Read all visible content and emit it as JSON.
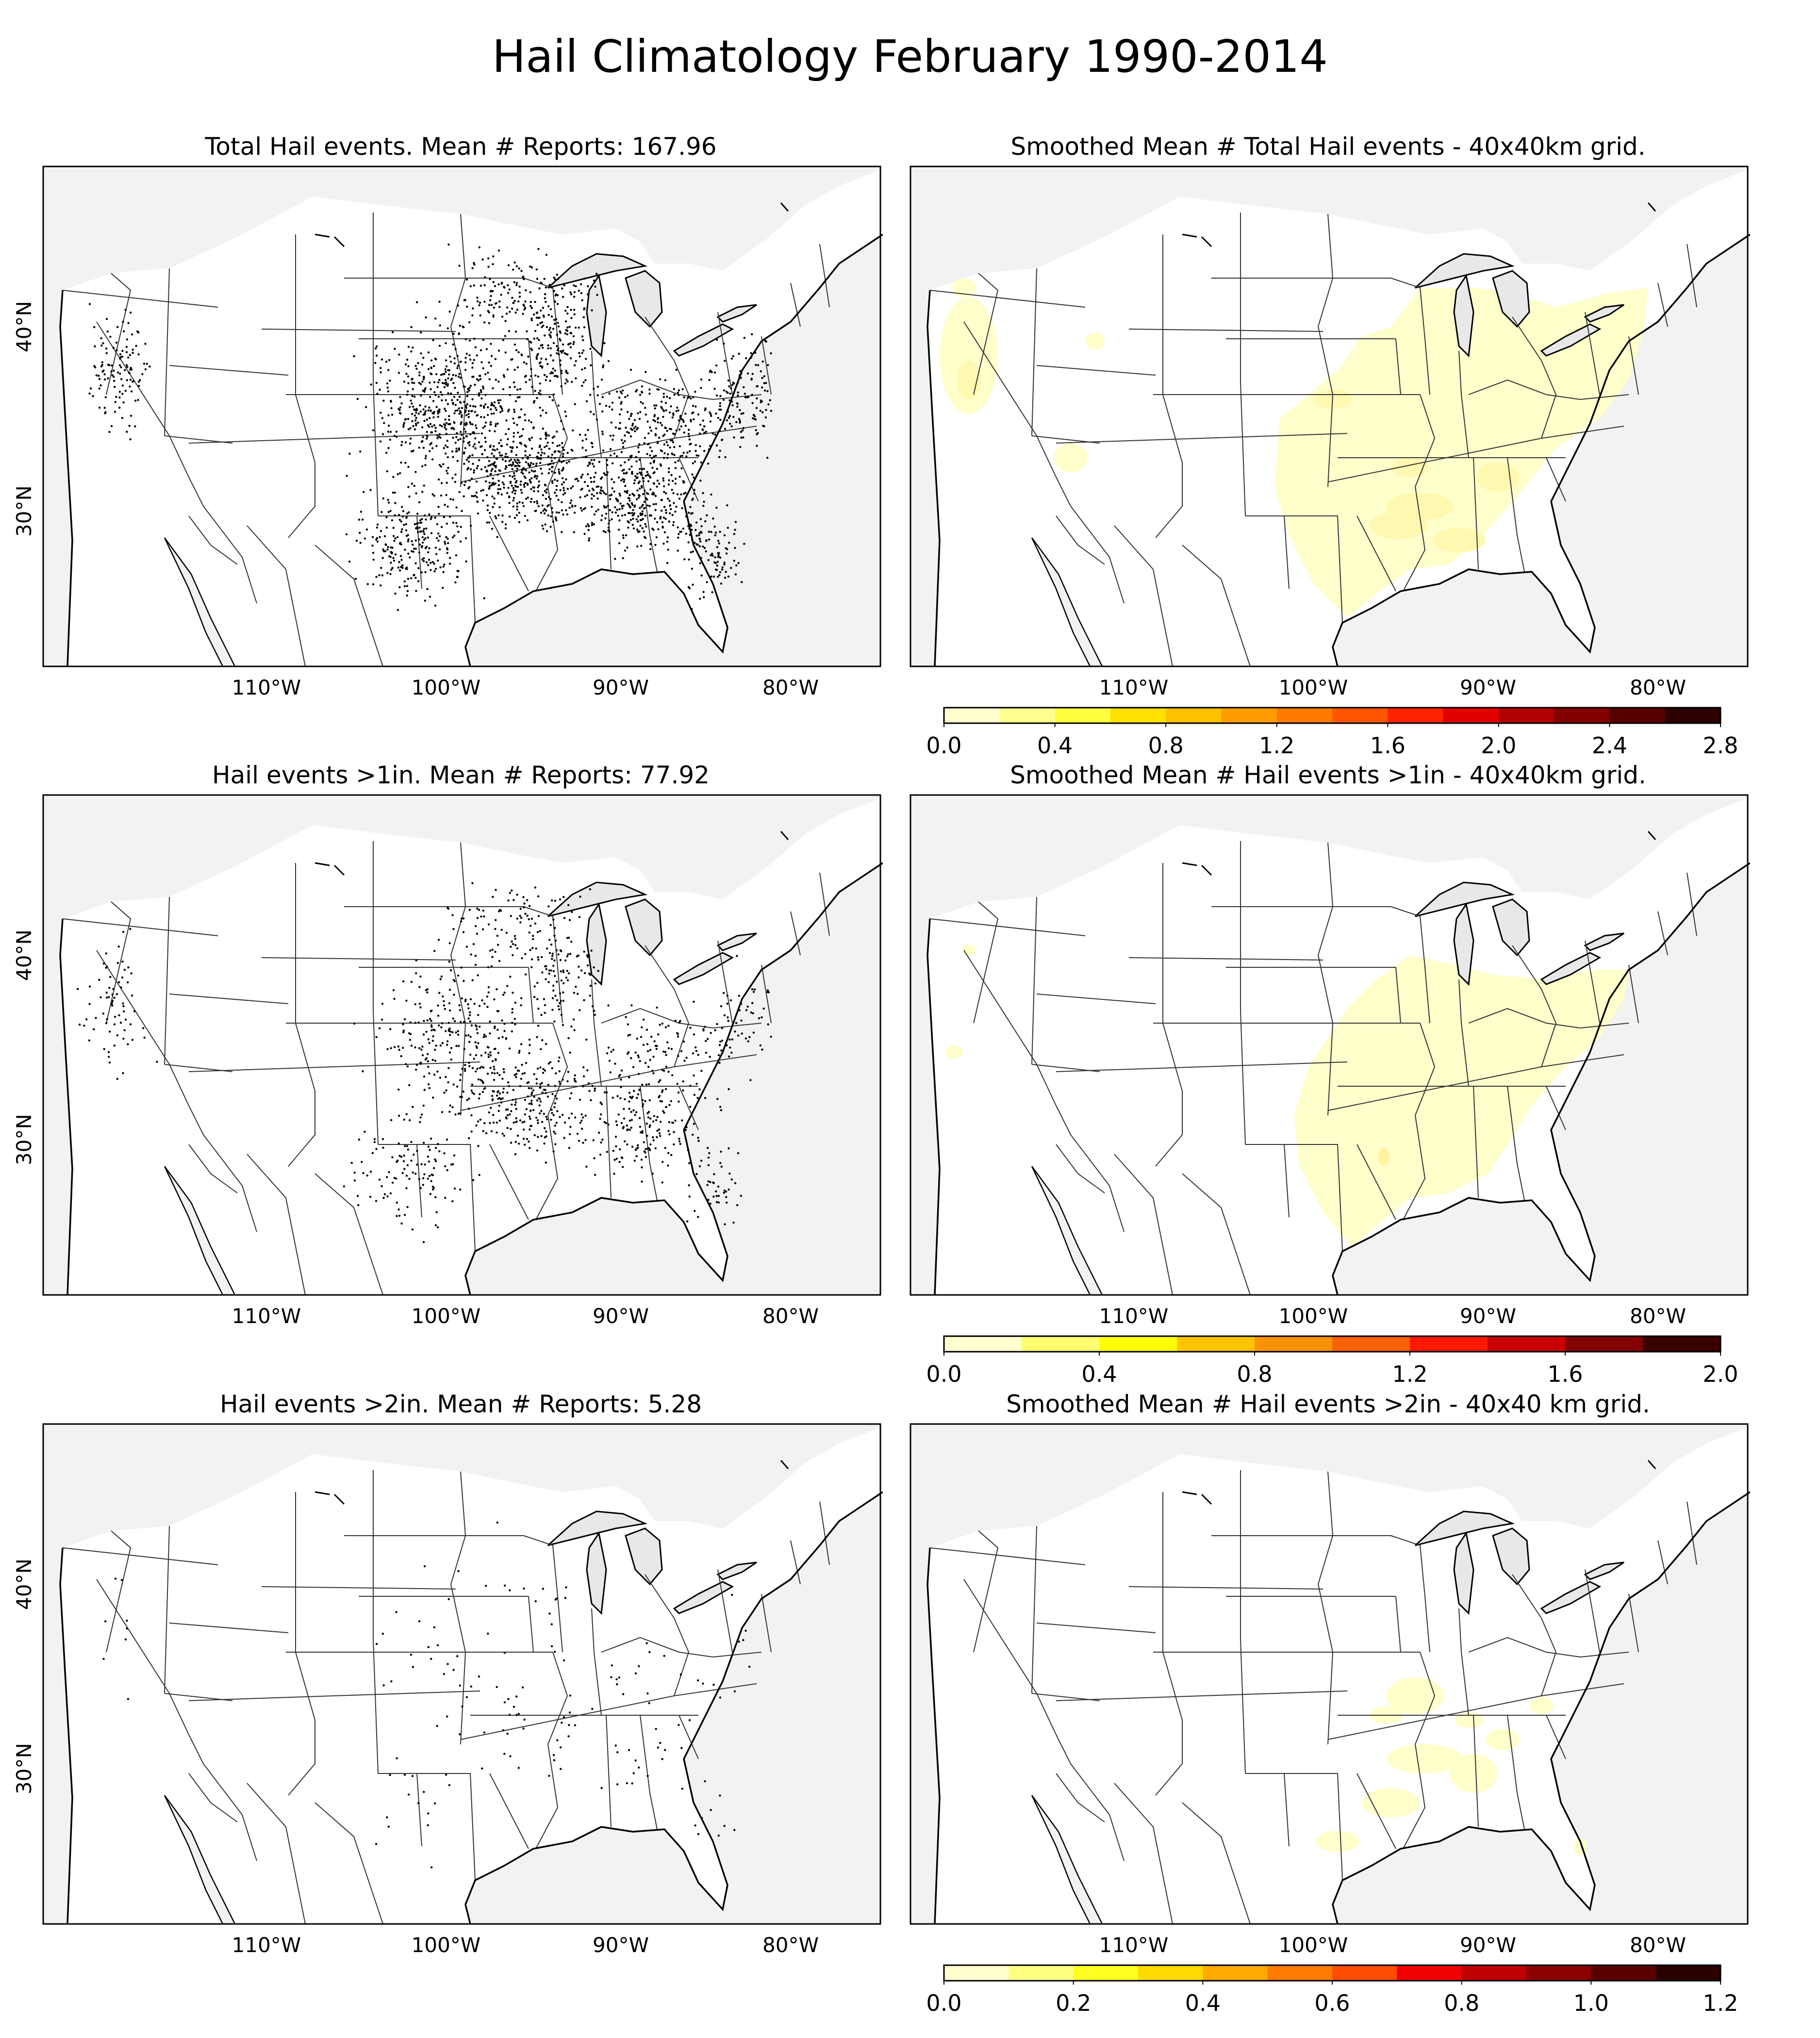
{
  "title": "Hail Climatology February 1990-2014",
  "axes": {
    "lon_ticks": [
      "110°W",
      "100°W",
      "90°W",
      "80°W"
    ],
    "lat_ticks": [
      "40°N",
      "30°N"
    ]
  },
  "colors": {
    "land": "#ffffff",
    "ocean": "#f2f2f2",
    "borders": "#000000",
    "points": "#000000"
  },
  "icons": [
    "state-borders",
    "coastline",
    "report-dot",
    "contour-fill"
  ],
  "panels": [
    {
      "id": "total-reports",
      "title": "Total Hail events. Mean # Reports: 167.96",
      "kind": "points",
      "density": 1.0
    },
    {
      "id": "total-smoothed",
      "title": "Smoothed Mean # Total Hail events - 40x40km grid.",
      "kind": "smoothed",
      "variant": 1
    },
    {
      "id": "gt1-reports",
      "title": "Hail events >1in. Mean # Reports: 77.92",
      "kind": "points",
      "density": 0.5
    },
    {
      "id": "gt1-smoothed",
      "title": "Smoothed Mean # Hail events >1in - 40x40km grid.",
      "kind": "smoothed",
      "variant": 2
    },
    {
      "id": "gt2-reports",
      "title": "Hail events >2in. Mean # Reports: 5.28",
      "kind": "points",
      "density": 0.06
    },
    {
      "id": "gt2-smoothed",
      "title": "Smoothed Mean # Hail events >2in - 40x40 km grid.",
      "kind": "smoothed",
      "variant": 3
    }
  ],
  "colorbars": [
    {
      "id": "cb-total",
      "min": 0.0,
      "max": 2.8,
      "labels": [
        "0.0",
        "0.4",
        "0.8",
        "1.2",
        "1.6",
        "2.0",
        "2.4",
        "2.8"
      ],
      "colors": [
        "#ffffd0",
        "#ffff90",
        "#ffff40",
        "#ffe000",
        "#ffc000",
        "#ff9d00",
        "#ff7a00",
        "#ff5500",
        "#ff2200",
        "#e00000",
        "#b00000",
        "#820000",
        "#560000",
        "#2c0000"
      ]
    },
    {
      "id": "cb-gt1",
      "min": 0.0,
      "max": 2.0,
      "labels": [
        "0.0",
        "0.4",
        "0.8",
        "1.2",
        "1.6",
        "2.0"
      ],
      "colors": [
        "#ffffd0",
        "#ffff70",
        "#ffff00",
        "#ffc400",
        "#ff9200",
        "#ff6000",
        "#ff1800",
        "#c80000",
        "#820000",
        "#3a0000"
      ]
    },
    {
      "id": "cb-gt2",
      "min": 0.0,
      "max": 1.2,
      "labels": [
        "0.0",
        "0.2",
        "0.4",
        "0.6",
        "0.8",
        "1.0",
        "1.2"
      ],
      "colors": [
        "#ffffd0",
        "#ffff80",
        "#ffff20",
        "#ffda00",
        "#ffaa00",
        "#ff7c00",
        "#ff4c00",
        "#f00000",
        "#be0000",
        "#8c0000",
        "#5a0000",
        "#2a0000"
      ]
    }
  ]
}
